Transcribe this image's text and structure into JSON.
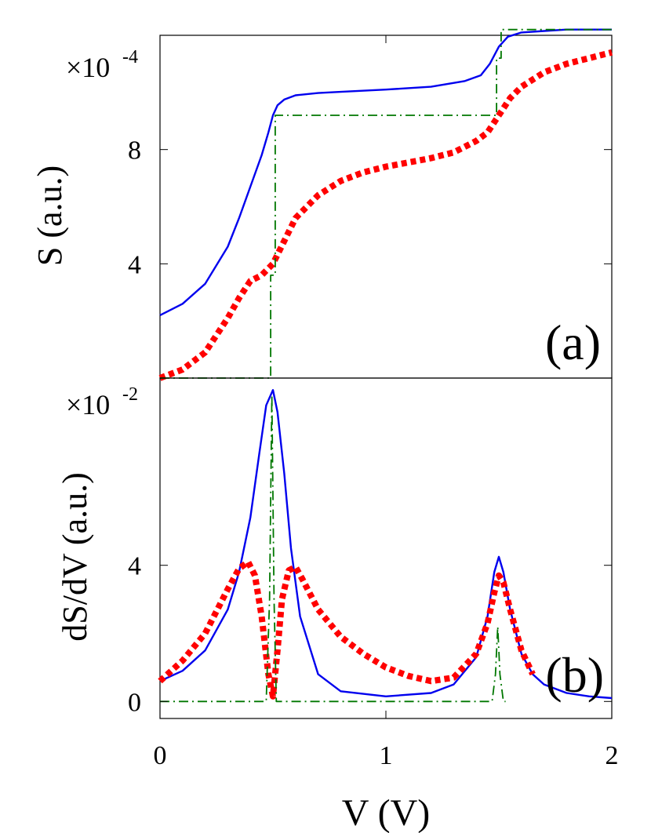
{
  "chart_data": [
    {
      "type": "line",
      "panel_label": "(a)",
      "ylabel": "S (a.u.)",
      "multiplier": {
        "base": "×10",
        "exponent": "-4"
      },
      "xlim": [
        0,
        2
      ],
      "ylim": [
        0,
        12
      ],
      "yticks": [
        {
          "v": 4,
          "label": "4"
        },
        {
          "v": 8,
          "label": "8"
        }
      ],
      "grid": false,
      "series": [
        {
          "color": "#0000ee",
          "style": "solid",
          "x": [
            0,
            0.1,
            0.2,
            0.3,
            0.35,
            0.4,
            0.45,
            0.48,
            0.5,
            0.52,
            0.55,
            0.6,
            0.7,
            0.8,
            1.0,
            1.2,
            1.35,
            1.42,
            1.46,
            1.5,
            1.54,
            1.6,
            1.7,
            1.8,
            2.0
          ],
          "y": [
            2.2,
            2.6,
            3.3,
            4.6,
            5.6,
            6.7,
            7.8,
            8.6,
            9.2,
            9.55,
            9.75,
            9.9,
            9.98,
            10.02,
            10.1,
            10.2,
            10.4,
            10.6,
            11.0,
            11.6,
            11.95,
            12.1,
            12.15,
            12.2,
            12.2
          ]
        },
        {
          "color": "#ff0000",
          "style": "dotted-thick",
          "x": [
            0,
            0.1,
            0.2,
            0.3,
            0.35,
            0.4,
            0.45,
            0.5,
            0.55,
            0.6,
            0.7,
            0.8,
            0.9,
            1.0,
            1.1,
            1.2,
            1.3,
            1.4,
            1.45,
            1.5,
            1.55,
            1.6,
            1.7,
            1.8,
            1.9,
            2.0
          ],
          "y": [
            0,
            0.3,
            0.9,
            2.1,
            2.8,
            3.4,
            3.6,
            4.0,
            4.8,
            5.6,
            6.4,
            6.9,
            7.2,
            7.4,
            7.55,
            7.7,
            7.9,
            8.3,
            8.6,
            9.2,
            9.8,
            10.2,
            10.7,
            11.0,
            11.2,
            11.4
          ]
        },
        {
          "color": "#007700",
          "style": "dash-dot",
          "x": [
            0,
            0.49,
            0.49,
            0.51,
            0.51,
            1.49,
            1.49,
            1.51,
            1.51,
            2.0
          ],
          "y": [
            0,
            0,
            3.6,
            3.6,
            9.2,
            9.2,
            11.2,
            11.2,
            12.2,
            12.2
          ]
        }
      ]
    },
    {
      "type": "line",
      "panel_label": "(b)",
      "ylabel": "dS/dV (a.u.)",
      "xlabel": "V (V)",
      "multiplier": {
        "base": "×10",
        "exponent": "-2"
      },
      "xlim": [
        0,
        2
      ],
      "ylim": [
        -0.5,
        9.5
      ],
      "yticks": [
        {
          "v": 0,
          "label": "0"
        },
        {
          "v": 4,
          "label": "4"
        }
      ],
      "xticks": [
        {
          "v": 0,
          "label": "0"
        },
        {
          "v": 1,
          "label": "1"
        },
        {
          "v": 2,
          "label": "2"
        }
      ],
      "grid": false,
      "series": [
        {
          "color": "#0000ee",
          "style": "solid",
          "x": [
            0,
            0.1,
            0.2,
            0.3,
            0.35,
            0.4,
            0.44,
            0.47,
            0.5,
            0.52,
            0.55,
            0.58,
            0.62,
            0.7,
            0.8,
            1.0,
            1.2,
            1.3,
            1.4,
            1.45,
            1.48,
            1.5,
            1.52,
            1.55,
            1.6,
            1.65,
            1.7,
            1.8,
            1.9,
            2.0
          ],
          "y": [
            0.6,
            0.9,
            1.5,
            2.7,
            3.8,
            5.4,
            7.3,
            8.7,
            9.15,
            8.5,
            6.7,
            4.5,
            2.5,
            0.8,
            0.3,
            0.15,
            0.25,
            0.5,
            1.3,
            2.5,
            3.8,
            4.25,
            3.8,
            2.7,
            1.4,
            0.8,
            0.5,
            0.25,
            0.15,
            0.1
          ]
        },
        {
          "color": "#ff0000",
          "style": "dotted-thick",
          "x": [
            0,
            0.1,
            0.2,
            0.3,
            0.35,
            0.39,
            0.42,
            0.45,
            0.48,
            0.5,
            0.52,
            0.54,
            0.57,
            0.6,
            0.63,
            0.7,
            0.8,
            0.9,
            1.0,
            1.1,
            1.2,
            1.3,
            1.4,
            1.45,
            1.48,
            1.5,
            1.52,
            1.55,
            1.6,
            1.65
          ],
          "y": [
            0.6,
            1.2,
            2.0,
            3.3,
            3.9,
            4.1,
            3.7,
            2.5,
            0.8,
            0.15,
            1.5,
            3.0,
            3.85,
            3.95,
            3.6,
            2.7,
            1.9,
            1.4,
            1.0,
            0.75,
            0.6,
            0.7,
            1.4,
            2.3,
            3.2,
            3.7,
            3.5,
            2.7,
            1.5,
            0.8
          ]
        },
        {
          "color": "#007700",
          "style": "dash-dot",
          "x": [
            0,
            0.47,
            0.485,
            0.495,
            0.505,
            0.515,
            0.53,
            1.47,
            1.485,
            1.495,
            1.505,
            1.52,
            1.53
          ],
          "y": [
            0,
            0,
            3.0,
            9.0,
            3.0,
            0,
            0,
            0,
            0.8,
            2.2,
            0.8,
            0,
            0
          ]
        }
      ]
    }
  ]
}
